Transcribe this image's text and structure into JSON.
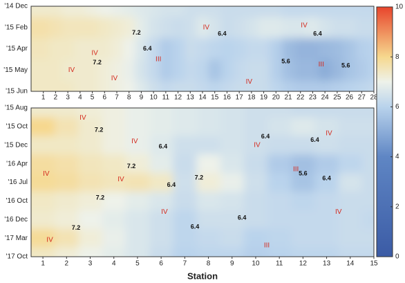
{
  "chart_data": [
    {
      "type": "contour",
      "x": [
        1,
        2,
        3,
        4,
        5,
        6,
        7,
        8,
        9,
        10,
        11,
        12,
        13,
        14,
        15,
        16,
        17,
        18,
        19,
        20,
        21,
        22,
        23,
        24,
        25,
        26,
        27,
        28
      ],
      "xlim": [
        0,
        28
      ],
      "xticks": [
        1,
        2,
        3,
        4,
        5,
        6,
        7,
        8,
        9,
        10,
        11,
        12,
        13,
        14,
        15,
        16,
        17,
        18,
        19,
        20,
        21,
        22,
        23,
        24,
        25,
        26,
        27,
        28
      ],
      "rows": [
        "'14 Dec",
        "'15 Feb",
        "'15 Apr",
        "'15 May",
        "'15 Jun"
      ],
      "ylim": [
        0,
        4
      ],
      "z": [
        [
          7.3,
          7.3,
          7.2,
          7.2,
          7.1,
          7.0,
          6.9,
          6.8,
          6.7,
          6.6,
          6.5,
          6.5,
          6.4,
          6.4,
          6.4,
          6.3,
          6.3,
          6.3,
          6.3,
          6.3,
          6.2,
          6.2,
          6.2,
          6.2,
          6.2,
          6.2,
          6.2,
          6.2
        ],
        [
          7.7,
          7.6,
          7.5,
          7.5,
          7.5,
          7.4,
          7.3,
          7.2,
          6.8,
          6.5,
          6.4,
          6.3,
          6.4,
          6.7,
          6.5,
          6.3,
          6.4,
          6.5,
          6.7,
          6.7,
          6.6,
          6.6,
          6.7,
          6.5,
          6.4,
          6.4,
          6.3,
          6.3
        ],
        [
          7.5,
          7.4,
          7.4,
          7.3,
          7.3,
          7.3,
          7.2,
          7.0,
          6.6,
          6.2,
          5.8,
          6.0,
          6.3,
          6.2,
          6.1,
          6.0,
          6.1,
          6.2,
          6.2,
          5.9,
          5.4,
          5.2,
          5.2,
          5.3,
          5.4,
          5.6,
          5.9,
          6.0
        ],
        [
          7.4,
          7.4,
          7.3,
          7.3,
          7.3,
          7.2,
          7.1,
          6.9,
          6.5,
          6.2,
          5.8,
          6.0,
          6.2,
          6.1,
          5.6,
          6.0,
          6.2,
          6.3,
          6.3,
          5.9,
          5.5,
          5.3,
          5.3,
          5.0,
          5.3,
          5.6,
          5.8,
          6.0
        ],
        [
          7.4,
          7.4,
          7.4,
          7.3,
          7.3,
          7.2,
          7.1,
          7.0,
          6.7,
          6.4,
          6.2,
          6.3,
          6.3,
          6.2,
          6.1,
          6.2,
          6.3,
          6.3,
          6.3,
          6.1,
          5.9,
          5.8,
          5.8,
          5.8,
          5.9,
          6.0,
          6.1,
          6.2
        ]
      ],
      "annotations": [
        {
          "text": "IV",
          "x": 5.2,
          "y": 2.2
        },
        {
          "text": "IV",
          "x": 3.3,
          "y": 3.0
        },
        {
          "text": "IV",
          "x": 6.8,
          "y": 3.4
        },
        {
          "text": 7.2,
          "x": 8.6,
          "y": 1.25
        },
        {
          "text": 7.2,
          "x": 5.4,
          "y": 2.65
        },
        {
          "text": 6.4,
          "x": 9.5,
          "y": 2.0
        },
        {
          "text": "III",
          "x": 10.4,
          "y": 2.5
        },
        {
          "text": "IV",
          "x": 14.3,
          "y": 1.0
        },
        {
          "text": 6.4,
          "x": 15.6,
          "y": 1.3
        },
        {
          "text": "IV",
          "x": 17.8,
          "y": 3.55
        },
        {
          "text": "IV",
          "x": 22.3,
          "y": 0.9
        },
        {
          "text": 6.4,
          "x": 23.4,
          "y": 1.3
        },
        {
          "text": 5.6,
          "x": 20.8,
          "y": 2.6
        },
        {
          "text": "III",
          "x": 23.7,
          "y": 2.75
        },
        {
          "text": 5.6,
          "x": 25.7,
          "y": 2.8
        }
      ]
    },
    {
      "type": "contour",
      "x": [
        1,
        2,
        3,
        4,
        5,
        6,
        7,
        8,
        9,
        10,
        11,
        12,
        13,
        14,
        15
      ],
      "xlim": [
        0.5,
        15
      ],
      "xticks": [
        1,
        2,
        3,
        4,
        5,
        6,
        7,
        8,
        9,
        10,
        11,
        12,
        13,
        14,
        15
      ],
      "rows": [
        "'15 Aug",
        "'15 Oct",
        "'15 Dec",
        "'16 Apr",
        "'16 Jul",
        "'16 Oct",
        "'16 Dec",
        "'17 Mar",
        "'17 Oct"
      ],
      "ylim": [
        0,
        8
      ],
      "xlabel": "Station",
      "z": [
        [
          7.3,
          7.3,
          7.2,
          7.1,
          6.9,
          6.8,
          6.7,
          6.6,
          6.5,
          6.4,
          6.4,
          6.3,
          6.3,
          6.3,
          6.3
        ],
        [
          8.0,
          7.6,
          7.3,
          7.1,
          6.9,
          6.8,
          6.7,
          6.6,
          6.5,
          6.4,
          6.5,
          6.7,
          6.5,
          6.4,
          6.4
        ],
        [
          7.4,
          7.4,
          7.3,
          7.1,
          6.9,
          6.7,
          6.4,
          6.4,
          6.5,
          6.4,
          6.3,
          6.3,
          6.4,
          6.3,
          6.3
        ],
        [
          7.8,
          7.7,
          7.5,
          7.4,
          7.2,
          6.8,
          6.3,
          7.0,
          6.6,
          6.3,
          5.8,
          5.5,
          5.8,
          6.1,
          6.3
        ],
        [
          7.9,
          7.8,
          7.6,
          7.5,
          7.6,
          7.4,
          6.4,
          7.2,
          6.9,
          6.4,
          6.0,
          5.6,
          6.0,
          6.5,
          6.3
        ],
        [
          7.4,
          7.3,
          7.2,
          7.0,
          6.8,
          6.6,
          6.3,
          6.6,
          6.5,
          6.3,
          6.2,
          6.1,
          6.2,
          6.3,
          6.3
        ],
        [
          7.3,
          7.2,
          7.0,
          6.8,
          6.6,
          6.4,
          6.1,
          6.4,
          6.4,
          6.3,
          6.2,
          6.2,
          6.2,
          6.3,
          6.2
        ],
        [
          7.9,
          7.6,
          7.2,
          6.9,
          6.6,
          6.4,
          6.1,
          6.2,
          6.3,
          6.0,
          6.1,
          6.2,
          6.2,
          6.3,
          6.3
        ],
        [
          7.4,
          7.2,
          7.0,
          6.8,
          6.6,
          6.3,
          6.0,
          6.1,
          6.1,
          5.9,
          6.0,
          6.1,
          6.1,
          6.2,
          6.2
        ]
      ],
      "annotations": [
        {
          "text": "IV",
          "x": 2.69,
          "y": 0.54
        },
        {
          "text": 7.2,
          "x": 3.37,
          "y": 1.19
        },
        {
          "text": "IV",
          "x": 4.88,
          "y": 1.8
        },
        {
          "text": 6.4,
          "x": 6.08,
          "y": 2.08
        },
        {
          "text": 7.2,
          "x": 4.74,
          "y": 3.15
        },
        {
          "text": "IV",
          "x": 1.14,
          "y": 3.54
        },
        {
          "text": "IV",
          "x": 4.3,
          "y": 3.85
        },
        {
          "text": 6.4,
          "x": 6.43,
          "y": 4.15
        },
        {
          "text": 7.2,
          "x": 7.6,
          "y": 3.77
        },
        {
          "text": 7.2,
          "x": 3.42,
          "y": 4.85
        },
        {
          "text": "IV",
          "x": 6.14,
          "y": 5.6
        },
        {
          "text": 6.4,
          "x": 7.43,
          "y": 6.4
        },
        {
          "text": 6.4,
          "x": 9.42,
          "y": 5.92
        },
        {
          "text": 7.2,
          "x": 2.4,
          "y": 6.46
        },
        {
          "text": "IV",
          "x": 1.29,
          "y": 7.1
        },
        {
          "text": "III",
          "x": 10.47,
          "y": 7.4
        },
        {
          "text": 6.4,
          "x": 10.41,
          "y": 1.54
        },
        {
          "text": "IV",
          "x": 10.06,
          "y": 2.0
        },
        {
          "text": 6.4,
          "x": 12.5,
          "y": 1.73
        },
        {
          "text": "IV",
          "x": 13.1,
          "y": 1.38
        },
        {
          "text": "III",
          "x": 11.7,
          "y": 3.3
        },
        {
          "text": 5.6,
          "x": 12.0,
          "y": 3.54
        },
        {
          "text": 6.4,
          "x": 13.0,
          "y": 3.8
        },
        {
          "text": "IV",
          "x": 13.5,
          "y": 5.6
        }
      ]
    },
    {
      "type": "colorbar",
      "clim": [
        0,
        10
      ],
      "cticks": [
        0,
        2,
        4,
        6,
        8,
        10
      ],
      "colorscale": [
        {
          "value": 0,
          "color": "#3b5ba5"
        },
        {
          "value": 4,
          "color": "#5f86c4"
        },
        {
          "value": 6,
          "color": "#b9d3ec"
        },
        {
          "value": 7,
          "color": "#eef2ea"
        },
        {
          "value": 8,
          "color": "#f6d88e"
        },
        {
          "value": 10,
          "color": "#e8452c"
        }
      ]
    }
  ]
}
